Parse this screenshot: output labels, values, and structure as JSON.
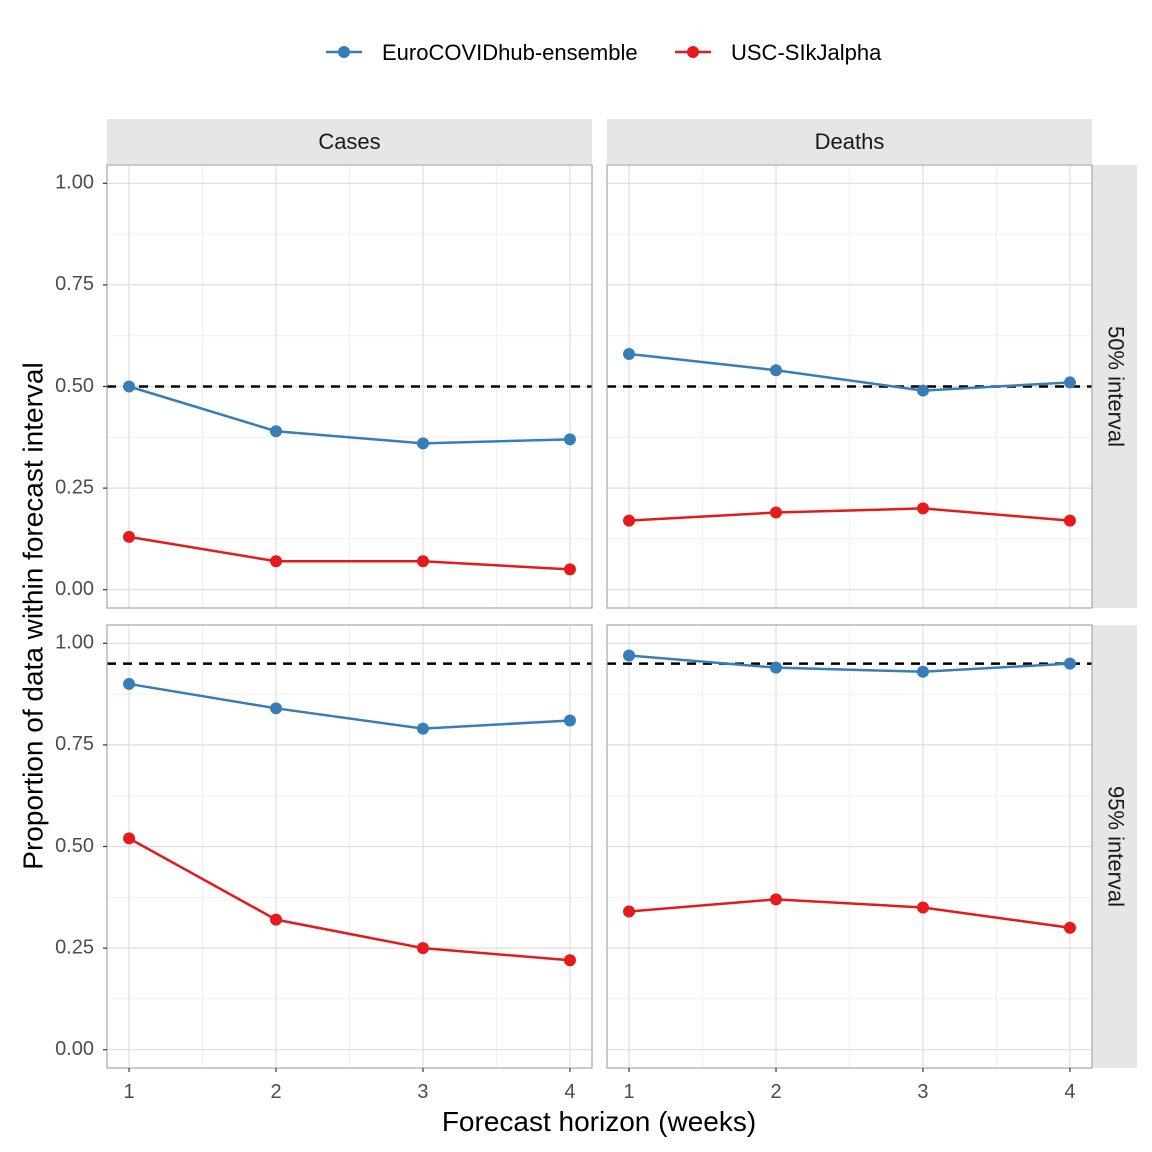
{
  "chart_data": {
    "type": "line",
    "xlabel": "Forecast horizon (weeks)",
    "ylabel": "Proportion of data within forecast interval",
    "x": [
      1,
      2,
      3,
      4
    ],
    "x_ticks": [
      "1",
      "2",
      "3",
      "4"
    ],
    "y_ticks": [
      "0.00",
      "0.25",
      "0.50",
      "0.75",
      "1.00"
    ],
    "xlim": [
      0.85,
      4.15
    ],
    "ylim": [
      -0.045,
      1.045
    ],
    "legend": {
      "position": "top",
      "entries": [
        {
          "name": "EuroCOVIDhub-ensemble",
          "color": "#377eb8"
        },
        {
          "name": "USC-SIkJalpha",
          "color": "#e41a1c"
        }
      ]
    },
    "facet_columns": [
      "Cases",
      "Deaths"
    ],
    "facet_rows": [
      "50% interval",
      "95% interval"
    ],
    "panels": [
      {
        "col": "Cases",
        "row": "50% interval",
        "reference": 0.5,
        "series": [
          {
            "name": "EuroCOVIDhub-ensemble",
            "values": [
              0.5,
              0.39,
              0.36,
              0.37
            ]
          },
          {
            "name": "USC-SIkJalpha",
            "values": [
              0.13,
              0.07,
              0.07,
              0.05
            ]
          }
        ]
      },
      {
        "col": "Deaths",
        "row": "50% interval",
        "reference": 0.5,
        "series": [
          {
            "name": "EuroCOVIDhub-ensemble",
            "values": [
              0.58,
              0.54,
              0.49,
              0.51
            ]
          },
          {
            "name": "USC-SIkJalpha",
            "values": [
              0.17,
              0.19,
              0.2,
              0.17
            ]
          }
        ]
      },
      {
        "col": "Cases",
        "row": "95% interval",
        "reference": 0.95,
        "series": [
          {
            "name": "EuroCOVIDhub-ensemble",
            "values": [
              0.9,
              0.84,
              0.79,
              0.81
            ]
          },
          {
            "name": "USC-SIkJalpha",
            "values": [
              0.52,
              0.32,
              0.25,
              0.22
            ]
          }
        ]
      },
      {
        "col": "Deaths",
        "row": "95% interval",
        "reference": 0.95,
        "series": [
          {
            "name": "EuroCOVIDhub-ensemble",
            "values": [
              0.97,
              0.94,
              0.93,
              0.95
            ]
          },
          {
            "name": "USC-SIkJalpha",
            "values": [
              0.34,
              0.37,
              0.35,
              0.3
            ]
          }
        ]
      }
    ]
  }
}
